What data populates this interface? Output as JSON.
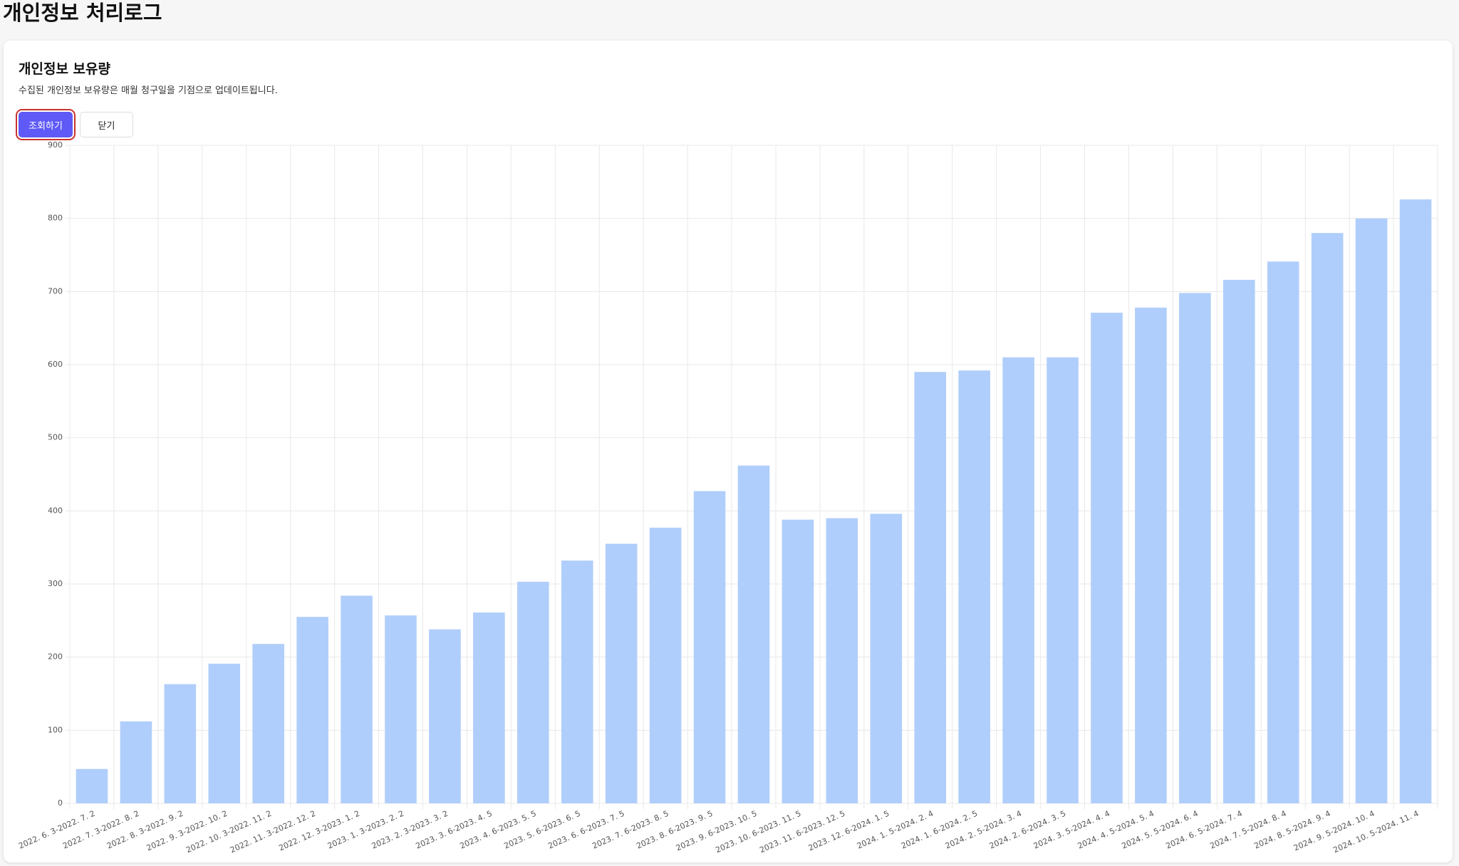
{
  "page_title": "개인정보 처리로그",
  "card": {
    "title": "개인정보 보유량",
    "description": "수집된 개인정보 보유량은 매월 청구일을 기점으로 업데이트됩니다.",
    "buttons": [
      "조회하기",
      "닫기"
    ]
  },
  "chart_data": {
    "type": "bar",
    "categories": [
      "2022. 6. 3-2022. 7. 2",
      "2022. 7. 3-2022. 8. 2",
      "2022. 8. 3-2022. 9. 2",
      "2022. 9. 3-2022. 10. 2",
      "2022. 10. 3-2022. 11. 2",
      "2022. 11. 3-2022. 12. 2",
      "2022. 12. 3-2023. 1. 2",
      "2023. 1. 3-2023. 2. 2",
      "2023. 2. 3-2023. 3. 2",
      "2023. 3. 6-2023. 4. 5",
      "2023. 4. 6-2023. 5. 5",
      "2023. 5. 6-2023. 6. 5",
      "2023. 6. 6-2023. 7. 5",
      "2023. 7. 6-2023. 8. 5",
      "2023. 8. 6-2023. 9. 5",
      "2023. 9. 6-2023. 10. 5",
      "2023. 10. 6-2023. 11. 5",
      "2023. 11. 6-2023. 12. 5",
      "2023. 12. 6-2024. 1. 5",
      "2024. 1. 5-2024. 2. 4",
      "2024. 1. 6-2024. 2. 5",
      "2024. 2. 5-2024. 3. 4",
      "2024. 2. 6-2024. 3. 5",
      "2024. 3. 5-2024. 4. 4",
      "2024. 4. 5-2024. 5. 4",
      "2024. 5. 5-2024. 6. 4",
      "2024. 6. 5-2024. 7. 4",
      "2024. 7. 5-2024. 8. 4",
      "2024. 8. 5-2024. 9. 4",
      "2024. 9. 5-2024. 10. 4",
      "2024. 10. 5-2024. 11. 4"
    ],
    "values": [
      47,
      112,
      163,
      191,
      218,
      255,
      284,
      257,
      238,
      261,
      303,
      332,
      355,
      377,
      427,
      462,
      388,
      390,
      396,
      590,
      592,
      610,
      610,
      671,
      678,
      698,
      716,
      741,
      780,
      800,
      826
    ],
    "color": "#b0cefb",
    "ylim": [
      0,
      900
    ],
    "yticks": [
      0,
      100,
      200,
      300,
      400,
      500,
      600,
      700,
      800,
      900
    ],
    "grid": true
  }
}
